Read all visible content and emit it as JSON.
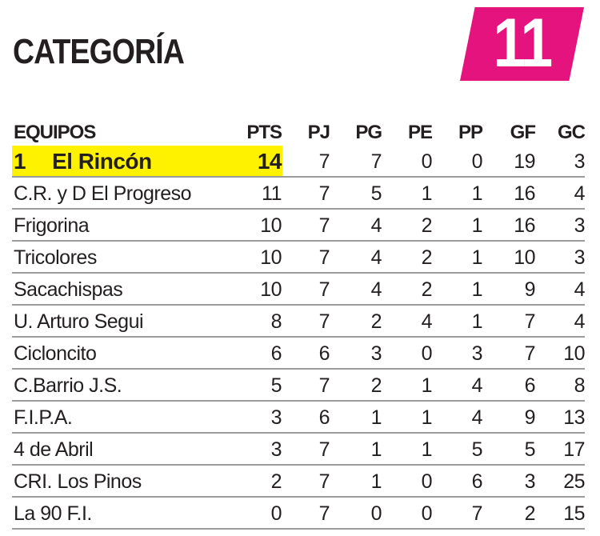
{
  "title": "CATEGORÍA",
  "category_number": "11",
  "colors": {
    "badge": "#e5137e",
    "highlight": "#fff200"
  },
  "columns": [
    "EQUIPOS",
    "PTS",
    "PJ",
    "PG",
    "PE",
    "PP",
    "GF",
    "GC"
  ],
  "leader": {
    "rank": "1",
    "team": "El Rincón",
    "values": [
      "14",
      "7",
      "7",
      "0",
      "0",
      "19",
      "3"
    ]
  },
  "rows": [
    {
      "team": "C.R. y D El Progreso",
      "values": [
        "11",
        "7",
        "5",
        "1",
        "1",
        "16",
        "4"
      ]
    },
    {
      "team": "Frigorina",
      "values": [
        "10",
        "7",
        "4",
        "2",
        "1",
        "16",
        "3"
      ]
    },
    {
      "team": "Tricolores",
      "values": [
        "10",
        "7",
        "4",
        "2",
        "1",
        "10",
        "3"
      ]
    },
    {
      "team": "Sacachispas",
      "values": [
        "10",
        "7",
        "4",
        "2",
        "1",
        "9",
        "4"
      ]
    },
    {
      "team": "U. Arturo Segui",
      "values": [
        "8",
        "7",
        "2",
        "4",
        "1",
        "7",
        "4"
      ]
    },
    {
      "team": "Cicloncito",
      "values": [
        "6",
        "6",
        "3",
        "0",
        "3",
        "7",
        "10"
      ]
    },
    {
      "team": "C.Barrio J.S.",
      "values": [
        "5",
        "7",
        "2",
        "1",
        "4",
        "6",
        "8"
      ]
    },
    {
      "team": "F.I.P.A.",
      "values": [
        "3",
        "6",
        "1",
        "1",
        "4",
        "9",
        "13"
      ]
    },
    {
      "team": "4 de Abril",
      "values": [
        "3",
        "7",
        "1",
        "1",
        "5",
        "5",
        "17"
      ]
    },
    {
      "team": "CRI. Los Pinos",
      "values": [
        "2",
        "7",
        "1",
        "0",
        "6",
        "3",
        "25"
      ]
    },
    {
      "team": "La 90 F.I.",
      "values": [
        "0",
        "7",
        "0",
        "0",
        "7",
        "2",
        "15"
      ]
    }
  ]
}
